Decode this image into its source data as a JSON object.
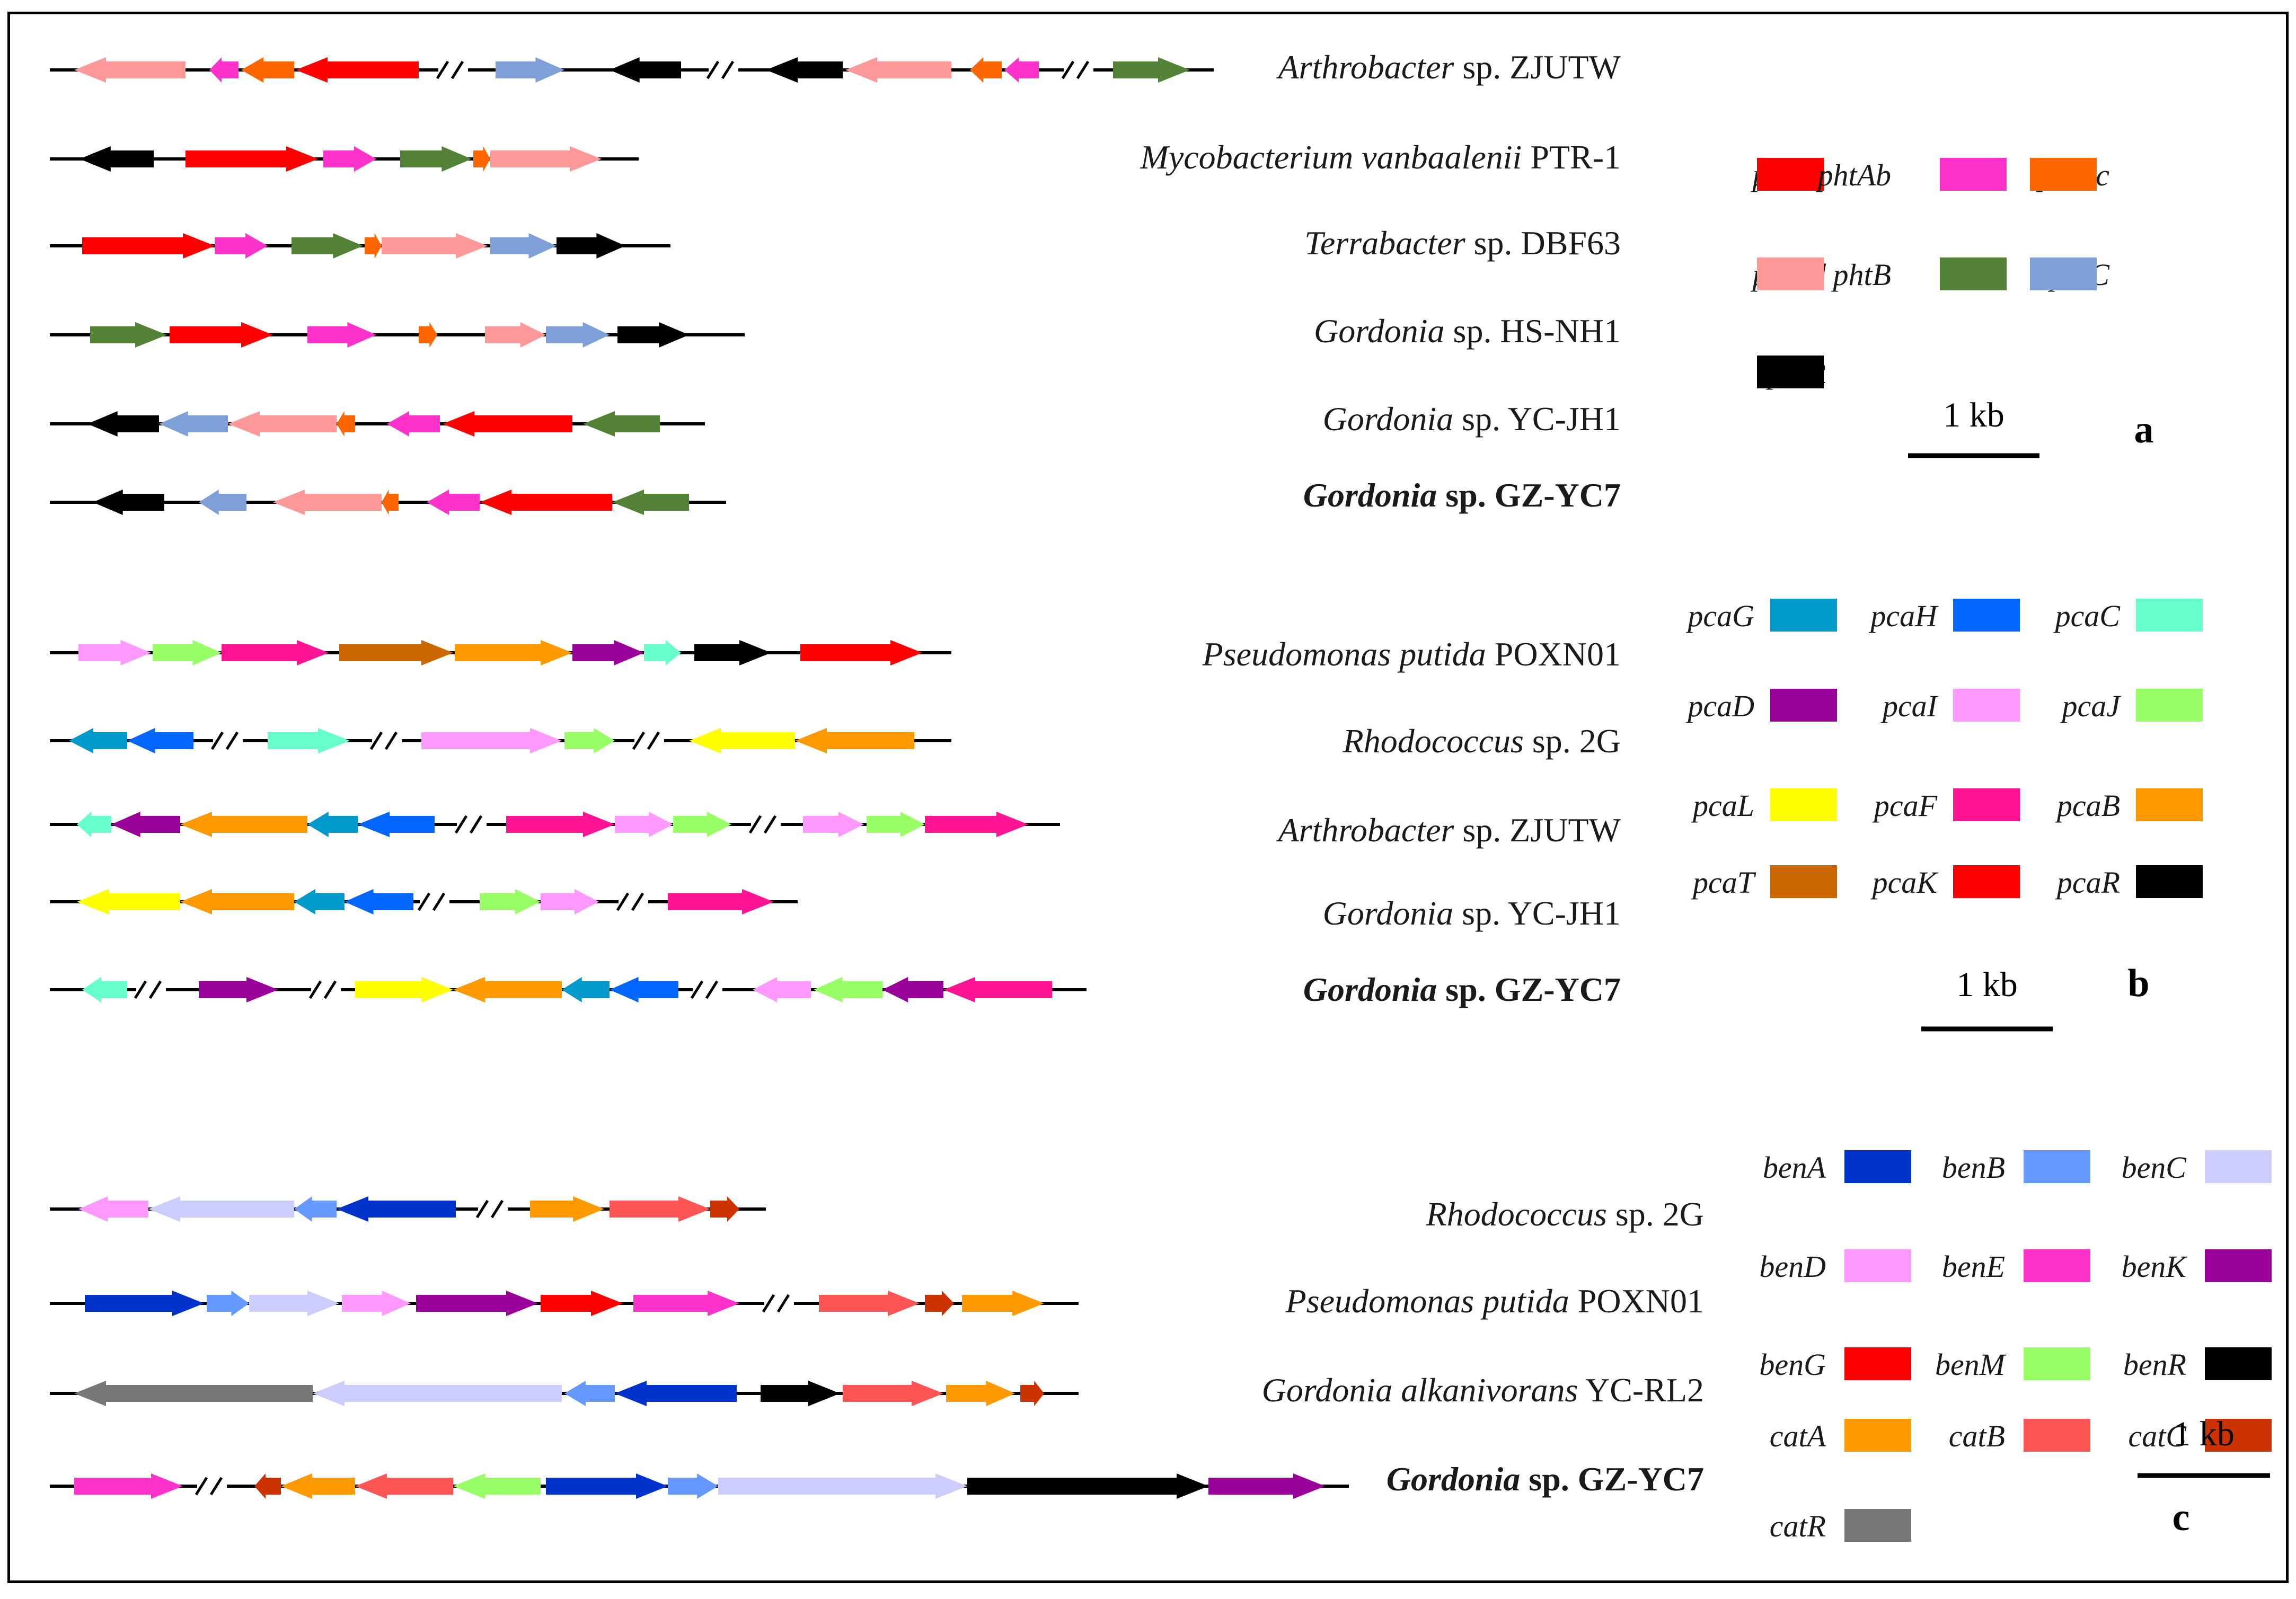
{
  "figure": {
    "panels": [
      {
        "id": "a",
        "panel_letter": "a",
        "scale_label": "1 kb",
        "legend": [
          {
            "gene": "phtAa",
            "color": "#ff0000"
          },
          {
            "gene": "phtAb",
            "color": "#ff33cc"
          },
          {
            "gene": "phtAc",
            "color": "#ff6600"
          },
          {
            "gene": "phtAd",
            "color": "#ff9999"
          },
          {
            "gene": "phtB",
            "color": "#538135"
          },
          {
            "gene": "phtC",
            "color": "#7f9fd8"
          },
          {
            "gene": "phtR",
            "color": "#000000"
          }
        ],
        "organisms": [
          {
            "genus": "Arthrobacter",
            "rest": " sp. ZJUTW",
            "bold": false
          },
          {
            "genus": "Mycobacterium vanbaalenii",
            "rest": " PTR-1",
            "bold": false
          },
          {
            "genus": "Terrabacter",
            "rest": " sp. DBF63",
            "bold": false
          },
          {
            "genus": "Gordonia",
            "rest": " sp. HS-NH1",
            "bold": false
          },
          {
            "genus": "Gordonia",
            "rest": " sp. YC-JH1",
            "bold": false
          },
          {
            "genus": "Gordonia",
            "rest": " sp. GZ-YC7",
            "bold": true
          }
        ]
      },
      {
        "id": "b",
        "panel_letter": "b",
        "scale_label": "1 kb",
        "legend": [
          {
            "gene": "pcaG",
            "color": "#0099cc"
          },
          {
            "gene": "pcaH",
            "color": "#0066ff"
          },
          {
            "gene": "pcaC",
            "color": "#66ffcc"
          },
          {
            "gene": "pcaD",
            "color": "#990099"
          },
          {
            "gene": "pcaI",
            "color": "#ff99ff"
          },
          {
            "gene": "pcaJ",
            "color": "#99ff66"
          },
          {
            "gene": "pcaL",
            "color": "#ffff00"
          },
          {
            "gene": "pcaF",
            "color": "#ff1493"
          },
          {
            "gene": "pcaB",
            "color": "#ff9900"
          },
          {
            "gene": "pcaT",
            "color": "#cc6600"
          },
          {
            "gene": "pcaK",
            "color": "#ff0000"
          },
          {
            "gene": "pcaR",
            "color": "#000000"
          }
        ],
        "organisms": [
          {
            "genus": "Pseudomonas putida",
            "rest": " POXN01",
            "bold": false
          },
          {
            "genus": "Rhodococcus",
            "rest": " sp. 2G",
            "bold": false
          },
          {
            "genus": "Arthrobacter",
            "rest": " sp. ZJUTW",
            "bold": false
          },
          {
            "genus": "Gordonia",
            "rest": " sp. YC-JH1",
            "bold": false
          },
          {
            "genus": "Gordonia",
            "rest": " sp. GZ-YC7",
            "bold": true
          }
        ]
      },
      {
        "id": "c",
        "panel_letter": "c",
        "scale_label": "1 kb",
        "legend": [
          {
            "gene": "benA",
            "color": "#0033cc"
          },
          {
            "gene": "benB",
            "color": "#6699ff"
          },
          {
            "gene": "benC",
            "color": "#ccccff"
          },
          {
            "gene": "benD",
            "color": "#ff99ff"
          },
          {
            "gene": "benE",
            "color": "#ff33cc"
          },
          {
            "gene": "benK",
            "color": "#990099"
          },
          {
            "gene": "benG",
            "color": "#ff0000"
          },
          {
            "gene": "benM",
            "color": "#99ff66"
          },
          {
            "gene": "benR",
            "color": "#000000"
          },
          {
            "gene": "catA",
            "color": "#ff9900"
          },
          {
            "gene": "catB",
            "color": "#ff5555"
          },
          {
            "gene": "catC",
            "color": "#cc3300"
          },
          {
            "gene": "catR",
            "color": "#777777"
          }
        ],
        "organisms": [
          {
            "genus": "Rhodococcus",
            "rest": " sp. 2G",
            "bold": false
          },
          {
            "genus": "Pseudomonas putida",
            "rest": " POXN01",
            "bold": false
          },
          {
            "genus": "Gordonia alkanivorans",
            "rest": " YC-RL2",
            "bold": false
          },
          {
            "genus": "Gordonia",
            "rest": " sp. GZ-YC7",
            "bold": true
          }
        ]
      }
    ]
  }
}
